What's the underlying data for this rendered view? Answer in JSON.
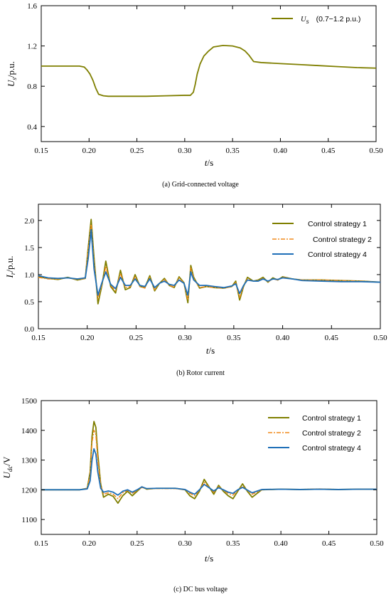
{
  "colors": {
    "strategy1": "#7f7f00",
    "strategy2": "#f08a1c",
    "strategy4": "#1f6fb8",
    "axis": "#000000"
  },
  "chart_data": [
    {
      "type": "line",
      "caption": "(a) Grid-connected voltage",
      "ylabel_main": "U",
      "ylabel_sub": "s",
      "ylabel_unit": "/p.u.",
      "xlabel_main": "t",
      "xlabel_unit": "/s",
      "xlim": [
        0.15,
        0.5
      ],
      "ylim": [
        0.25,
        1.6
      ],
      "xticks": [
        0.15,
        0.2,
        0.25,
        0.3,
        0.35,
        0.4,
        0.45,
        0.5
      ],
      "xtick_labels": [
        "0.15",
        "0.20",
        "0.25",
        "0.30",
        "0.35",
        "0.40",
        "0.45",
        "0.50"
      ],
      "yticks": [
        0.4,
        0.8,
        1.2,
        1.6
      ],
      "ytick_labels": [
        "0.4",
        "0.8",
        "1.2",
        "1.6"
      ],
      "legend_position": "top-right",
      "series": [
        {
          "name": "U",
          "name_sub": "s",
          "name_note": "(0.7−1.2 p.u.)",
          "color_key": "strategy1",
          "dash": "",
          "x": [
            0.15,
            0.17,
            0.19,
            0.195,
            0.198,
            0.201,
            0.204,
            0.207,
            0.21,
            0.215,
            0.22,
            0.24,
            0.26,
            0.28,
            0.3,
            0.306,
            0.309,
            0.311,
            0.313,
            0.316,
            0.32,
            0.325,
            0.33,
            0.34,
            0.35,
            0.358,
            0.363,
            0.367,
            0.372,
            0.38,
            0.4,
            0.42,
            0.44,
            0.46,
            0.48,
            0.5
          ],
          "y": [
            1.0,
            1.0,
            1.0,
            0.99,
            0.96,
            0.92,
            0.86,
            0.78,
            0.72,
            0.705,
            0.7,
            0.7,
            0.7,
            0.705,
            0.71,
            0.71,
            0.74,
            0.82,
            0.92,
            1.02,
            1.1,
            1.15,
            1.19,
            1.205,
            1.2,
            1.18,
            1.15,
            1.11,
            1.045,
            1.035,
            1.025,
            1.015,
            1.005,
            0.995,
            0.985,
            0.98
          ]
        }
      ]
    },
    {
      "type": "line",
      "caption": "(b) Rotor current",
      "ylabel_main": "I",
      "ylabel_sub": "r",
      "ylabel_unit": "/p.u.",
      "xlabel_main": "t",
      "xlabel_unit": "/s",
      "xlim": [
        0.15,
        0.5
      ],
      "ylim": [
        0.0,
        2.3
      ],
      "xticks": [
        0.15,
        0.2,
        0.25,
        0.3,
        0.35,
        0.4,
        0.45,
        0.5
      ],
      "xtick_labels": [
        "0.15",
        "0.20",
        "0.25",
        "0.30",
        "0.35",
        "0.40",
        "0.45",
        "0.50"
      ],
      "yticks": [
        0.0,
        0.5,
        1.0,
        1.5,
        2.0
      ],
      "ytick_labels": [
        "0.0",
        "0.5",
        "1.0",
        "1.5",
        "2.0"
      ],
      "legend_position": "top-right",
      "series": [
        {
          "name": "Control strategy 1",
          "color_key": "strategy1",
          "dash": "",
          "x": [
            0.15,
            0.16,
            0.17,
            0.18,
            0.19,
            0.198,
            0.201,
            0.204,
            0.207,
            0.211,
            0.215,
            0.219,
            0.224,
            0.229,
            0.234,
            0.239,
            0.244,
            0.249,
            0.254,
            0.259,
            0.264,
            0.269,
            0.274,
            0.279,
            0.284,
            0.289,
            0.294,
            0.299,
            0.303,
            0.306,
            0.309,
            0.315,
            0.322,
            0.33,
            0.34,
            0.348,
            0.352,
            0.356,
            0.36,
            0.364,
            0.37,
            0.375,
            0.38,
            0.385,
            0.39,
            0.395,
            0.4,
            0.41,
            0.42,
            0.44,
            0.46,
            0.48,
            0.5
          ],
          "y": [
            0.96,
            0.93,
            0.91,
            0.95,
            0.9,
            0.93,
            1.5,
            2.02,
            1.3,
            0.46,
            0.8,
            1.25,
            0.78,
            0.66,
            1.08,
            0.72,
            0.76,
            1.0,
            0.78,
            0.76,
            0.98,
            0.7,
            0.84,
            0.93,
            0.8,
            0.76,
            0.96,
            0.85,
            0.48,
            1.17,
            0.95,
            0.75,
            0.78,
            0.76,
            0.75,
            0.78,
            0.88,
            0.53,
            0.78,
            0.95,
            0.88,
            0.9,
            0.95,
            0.86,
            0.94,
            0.9,
            0.96,
            0.92,
            0.9,
            0.9,
            0.89,
            0.88,
            0.86
          ]
        },
        {
          "name": "Control strategy 2",
          "color_key": "strategy2",
          "dash": "6,2,2,2",
          "x": [
            0.15,
            0.16,
            0.17,
            0.18,
            0.19,
            0.198,
            0.201,
            0.204,
            0.207,
            0.211,
            0.215,
            0.219,
            0.224,
            0.229,
            0.234,
            0.239,
            0.244,
            0.249,
            0.254,
            0.259,
            0.264,
            0.269,
            0.274,
            0.279,
            0.284,
            0.289,
            0.294,
            0.299,
            0.303,
            0.306,
            0.309,
            0.315,
            0.322,
            0.33,
            0.34,
            0.348,
            0.352,
            0.356,
            0.36,
            0.364,
            0.37,
            0.375,
            0.38,
            0.385,
            0.39,
            0.395,
            0.4,
            0.41,
            0.42,
            0.44,
            0.46,
            0.48,
            0.5
          ],
          "y": [
            0.95,
            0.92,
            0.92,
            0.94,
            0.91,
            0.93,
            1.45,
            1.93,
            1.2,
            0.55,
            0.82,
            1.15,
            0.8,
            0.7,
            1.02,
            0.76,
            0.78,
            0.96,
            0.78,
            0.75,
            0.95,
            0.72,
            0.84,
            0.91,
            0.8,
            0.77,
            0.94,
            0.84,
            0.53,
            1.12,
            0.93,
            0.76,
            0.78,
            0.76,
            0.75,
            0.78,
            0.85,
            0.58,
            0.79,
            0.92,
            0.88,
            0.89,
            0.93,
            0.87,
            0.92,
            0.9,
            0.95,
            0.92,
            0.9,
            0.9,
            0.89,
            0.88,
            0.86
          ]
        },
        {
          "name": "Control strategy 4",
          "color_key": "strategy4",
          "dash": "",
          "x": [
            0.15,
            0.16,
            0.17,
            0.18,
            0.19,
            0.198,
            0.201,
            0.204,
            0.207,
            0.211,
            0.215,
            0.219,
            0.224,
            0.229,
            0.234,
            0.239,
            0.244,
            0.249,
            0.254,
            0.259,
            0.264,
            0.269,
            0.274,
            0.279,
            0.284,
            0.289,
            0.294,
            0.299,
            0.303,
            0.306,
            0.309,
            0.315,
            0.322,
            0.33,
            0.34,
            0.348,
            0.352,
            0.356,
            0.36,
            0.364,
            0.37,
            0.375,
            0.38,
            0.385,
            0.39,
            0.395,
            0.4,
            0.41,
            0.42,
            0.44,
            0.46,
            0.48,
            0.5
          ],
          "y": [
            0.98,
            0.94,
            0.93,
            0.94,
            0.92,
            0.94,
            1.3,
            1.83,
            1.1,
            0.62,
            0.85,
            1.05,
            0.82,
            0.74,
            0.95,
            0.8,
            0.8,
            0.92,
            0.8,
            0.78,
            0.92,
            0.76,
            0.84,
            0.88,
            0.82,
            0.8,
            0.9,
            0.84,
            0.62,
            1.05,
            0.9,
            0.8,
            0.8,
            0.78,
            0.76,
            0.79,
            0.83,
            0.65,
            0.8,
            0.9,
            0.88,
            0.88,
            0.92,
            0.88,
            0.92,
            0.91,
            0.94,
            0.92,
            0.89,
            0.88,
            0.87,
            0.87,
            0.86
          ]
        }
      ]
    },
    {
      "type": "line",
      "caption": "(c) DC bus voltage",
      "ylabel_main": "U",
      "ylabel_sub": "dc",
      "ylabel_unit": "/V",
      "xlabel_main": "t",
      "xlabel_unit": "/s",
      "xlim": [
        0.15,
        0.5
      ],
      "ylim": [
        1050,
        1500
      ],
      "xticks": [
        0.15,
        0.2,
        0.25,
        0.3,
        0.35,
        0.4,
        0.45,
        0.5
      ],
      "xtick_labels": [
        "0.15",
        "0.20",
        "0.25",
        "0.30",
        "0.35",
        "0.40",
        "0.45",
        "0.50"
      ],
      "yticks": [
        1100,
        1200,
        1300,
        1400,
        1500
      ],
      "ytick_labels": [
        "1100",
        "1200",
        "1300",
        "1400",
        "1500"
      ],
      "legend_position": "top-right",
      "series": [
        {
          "name": "Control strategy 1",
          "color_key": "strategy1",
          "dash": "",
          "x": [
            0.15,
            0.17,
            0.19,
            0.198,
            0.201,
            0.203,
            0.205,
            0.207,
            0.209,
            0.212,
            0.215,
            0.22,
            0.225,
            0.23,
            0.235,
            0.24,
            0.245,
            0.25,
            0.255,
            0.26,
            0.27,
            0.28,
            0.29,
            0.3,
            0.305,
            0.31,
            0.315,
            0.32,
            0.325,
            0.33,
            0.335,
            0.34,
            0.345,
            0.35,
            0.355,
            0.36,
            0.365,
            0.37,
            0.38,
            0.4,
            0.42,
            0.44,
            0.46,
            0.48,
            0.5
          ],
          "y": [
            1200,
            1200,
            1200,
            1205,
            1260,
            1380,
            1430,
            1410,
            1320,
            1220,
            1175,
            1185,
            1178,
            1155,
            1180,
            1195,
            1180,
            1195,
            1210,
            1202,
            1205,
            1205,
            1205,
            1200,
            1180,
            1170,
            1195,
            1235,
            1210,
            1185,
            1215,
            1195,
            1180,
            1170,
            1195,
            1220,
            1195,
            1175,
            1200,
            1202,
            1201,
            1202,
            1201,
            1202,
            1202
          ]
        },
        {
          "name": "Control strategy 2",
          "color_key": "strategy2",
          "dash": "6,2,2,2",
          "x": [
            0.15,
            0.17,
            0.19,
            0.198,
            0.201,
            0.203,
            0.205,
            0.207,
            0.209,
            0.212,
            0.215,
            0.22,
            0.225,
            0.23,
            0.235,
            0.24,
            0.245,
            0.25,
            0.255,
            0.26,
            0.27,
            0.28,
            0.29,
            0.3,
            0.305,
            0.31,
            0.315,
            0.32,
            0.325,
            0.33,
            0.335,
            0.34,
            0.345,
            0.35,
            0.355,
            0.36,
            0.365,
            0.37,
            0.38,
            0.4,
            0.42,
            0.44,
            0.46,
            0.48,
            0.5
          ],
          "y": [
            1200,
            1200,
            1200,
            1205,
            1250,
            1360,
            1400,
            1385,
            1300,
            1215,
            1185,
            1190,
            1185,
            1170,
            1190,
            1198,
            1188,
            1198,
            1208,
            1203,
            1204,
            1204,
            1204,
            1200,
            1188,
            1180,
            1198,
            1225,
            1208,
            1192,
            1210,
            1198,
            1188,
            1182,
            1198,
            1212,
            1198,
            1185,
            1200,
            1202,
            1201,
            1203,
            1201,
            1202,
            1202
          ]
        },
        {
          "name": "Control strategy 4",
          "color_key": "strategy4",
          "dash": "",
          "x": [
            0.15,
            0.17,
            0.19,
            0.198,
            0.201,
            0.203,
            0.205,
            0.207,
            0.209,
            0.212,
            0.215,
            0.22,
            0.225,
            0.23,
            0.235,
            0.24,
            0.245,
            0.25,
            0.255,
            0.26,
            0.27,
            0.28,
            0.29,
            0.3,
            0.305,
            0.31,
            0.315,
            0.32,
            0.325,
            0.33,
            0.335,
            0.34,
            0.345,
            0.35,
            0.355,
            0.36,
            0.365,
            0.37,
            0.38,
            0.4,
            0.42,
            0.44,
            0.46,
            0.48,
            0.5
          ],
          "y": [
            1200,
            1200,
            1200,
            1203,
            1230,
            1300,
            1338,
            1320,
            1260,
            1205,
            1192,
            1196,
            1192,
            1182,
            1195,
            1200,
            1192,
            1200,
            1210,
            1204,
            1205,
            1205,
            1205,
            1201,
            1192,
            1185,
            1200,
            1218,
            1207,
            1196,
            1207,
            1200,
            1192,
            1188,
            1200,
            1208,
            1199,
            1190,
            1201,
            1202,
            1201,
            1202,
            1201,
            1202,
            1202
          ]
        }
      ]
    }
  ]
}
